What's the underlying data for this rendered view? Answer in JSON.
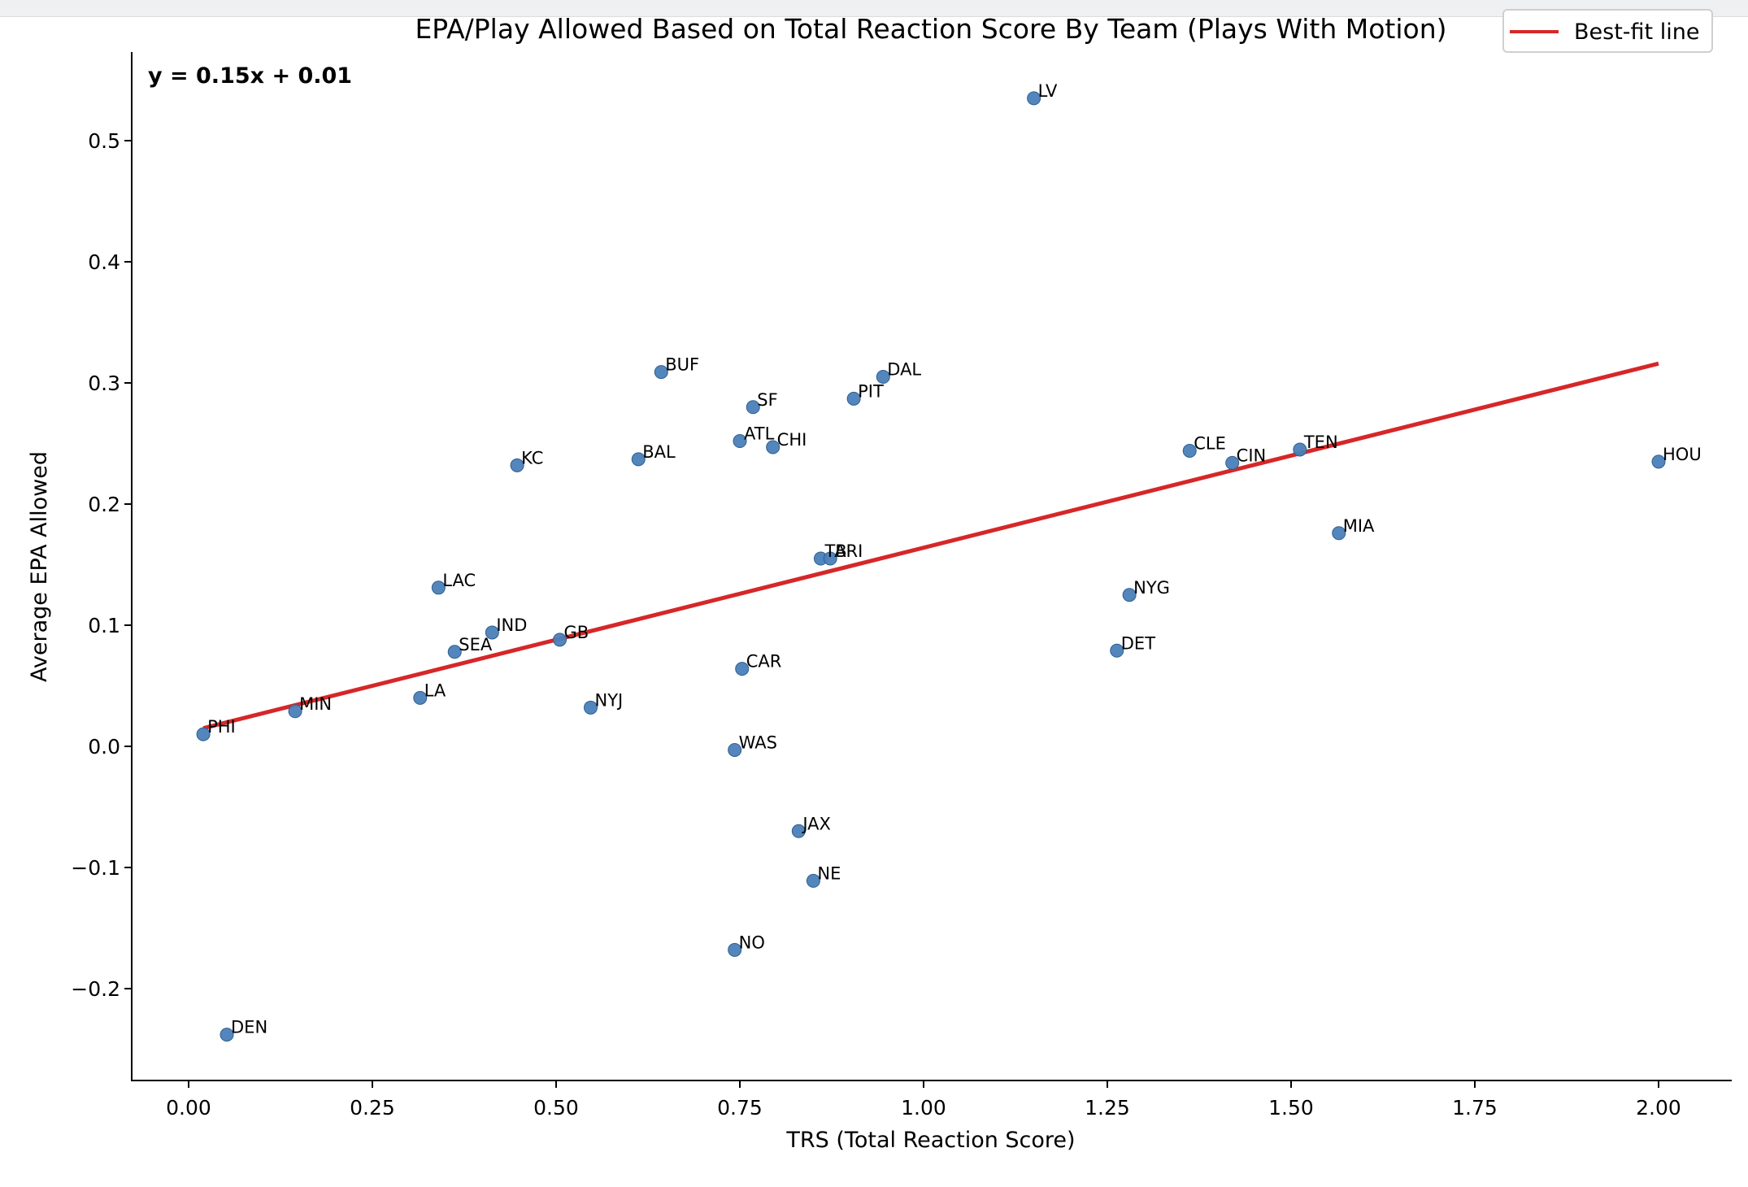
{
  "chart_data": {
    "type": "scatter",
    "title": "EPA/Play Allowed Based on Total Reaction Score By Team (Plays With Motion)",
    "xlabel": "TRS (Total Reaction Score)",
    "ylabel": "Average EPA Allowed",
    "xlim": [
      -0.08,
      2.1
    ],
    "ylim": [
      -0.275,
      0.575
    ],
    "xticks": [
      0.0,
      0.25,
      0.5,
      0.75,
      1.0,
      1.25,
      1.5,
      1.75,
      2.0
    ],
    "yticks": [
      -0.2,
      -0.1,
      0.0,
      0.1,
      0.2,
      0.3,
      0.4,
      0.5
    ],
    "xtick_labels": [
      "0.00",
      "0.25",
      "0.50",
      "0.75",
      "1.00",
      "1.25",
      "1.50",
      "1.75",
      "2.00"
    ],
    "ytick_labels": [
      "−0.2",
      "−0.1",
      "0.0",
      "0.1",
      "0.2",
      "0.3",
      "0.4",
      "0.5"
    ],
    "grid": false,
    "legend_position": "top-right",
    "point_color": "#4a7fb8",
    "line_color": "#d62728",
    "fit_line": {
      "label": "Best-fit line",
      "equation": "y = 0.15x + 0.01",
      "x": [
        0.02,
        2.0
      ],
      "y": [
        0.015,
        0.316
      ]
    },
    "points": [
      {
        "team": "LV",
        "x": 1.15,
        "y": 0.535
      },
      {
        "team": "BUF",
        "x": 0.643,
        "y": 0.309
      },
      {
        "team": "DAL",
        "x": 0.945,
        "y": 0.305
      },
      {
        "team": "SF",
        "x": 0.768,
        "y": 0.28
      },
      {
        "team": "PIT",
        "x": 0.905,
        "y": 0.287
      },
      {
        "team": "ATL",
        "x": 0.75,
        "y": 0.252
      },
      {
        "team": "CHI",
        "x": 0.795,
        "y": 0.247
      },
      {
        "team": "BAL",
        "x": 0.612,
        "y": 0.237
      },
      {
        "team": "KC",
        "x": 0.447,
        "y": 0.232
      },
      {
        "team": "CLE",
        "x": 1.362,
        "y": 0.244
      },
      {
        "team": "CIN",
        "x": 1.42,
        "y": 0.234
      },
      {
        "team": "TEN",
        "x": 1.512,
        "y": 0.245
      },
      {
        "team": "HOU",
        "x": 2.0,
        "y": 0.235
      },
      {
        "team": "MIA",
        "x": 1.565,
        "y": 0.176
      },
      {
        "team": "TB",
        "x": 0.86,
        "y": 0.155
      },
      {
        "team": "ARI",
        "x": 0.873,
        "y": 0.155
      },
      {
        "team": "LAC",
        "x": 0.34,
        "y": 0.131
      },
      {
        "team": "NYG",
        "x": 1.28,
        "y": 0.125
      },
      {
        "team": "IND",
        "x": 0.413,
        "y": 0.094
      },
      {
        "team": "GB",
        "x": 0.505,
        "y": 0.088
      },
      {
        "team": "SEA",
        "x": 0.362,
        "y": 0.078
      },
      {
        "team": "DET",
        "x": 1.263,
        "y": 0.079
      },
      {
        "team": "CAR",
        "x": 0.753,
        "y": 0.064
      },
      {
        "team": "LA",
        "x": 0.315,
        "y": 0.04
      },
      {
        "team": "NYJ",
        "x": 0.547,
        "y": 0.032
      },
      {
        "team": "MIN",
        "x": 0.145,
        "y": 0.029
      },
      {
        "team": "PHI",
        "x": 0.02,
        "y": 0.01
      },
      {
        "team": "WAS",
        "x": 0.743,
        "y": -0.003
      },
      {
        "team": "JAX",
        "x": 0.83,
        "y": -0.07
      },
      {
        "team": "NE",
        "x": 0.85,
        "y": -0.111
      },
      {
        "team": "NO",
        "x": 0.743,
        "y": -0.168
      },
      {
        "team": "DEN",
        "x": 0.052,
        "y": -0.238
      }
    ]
  }
}
